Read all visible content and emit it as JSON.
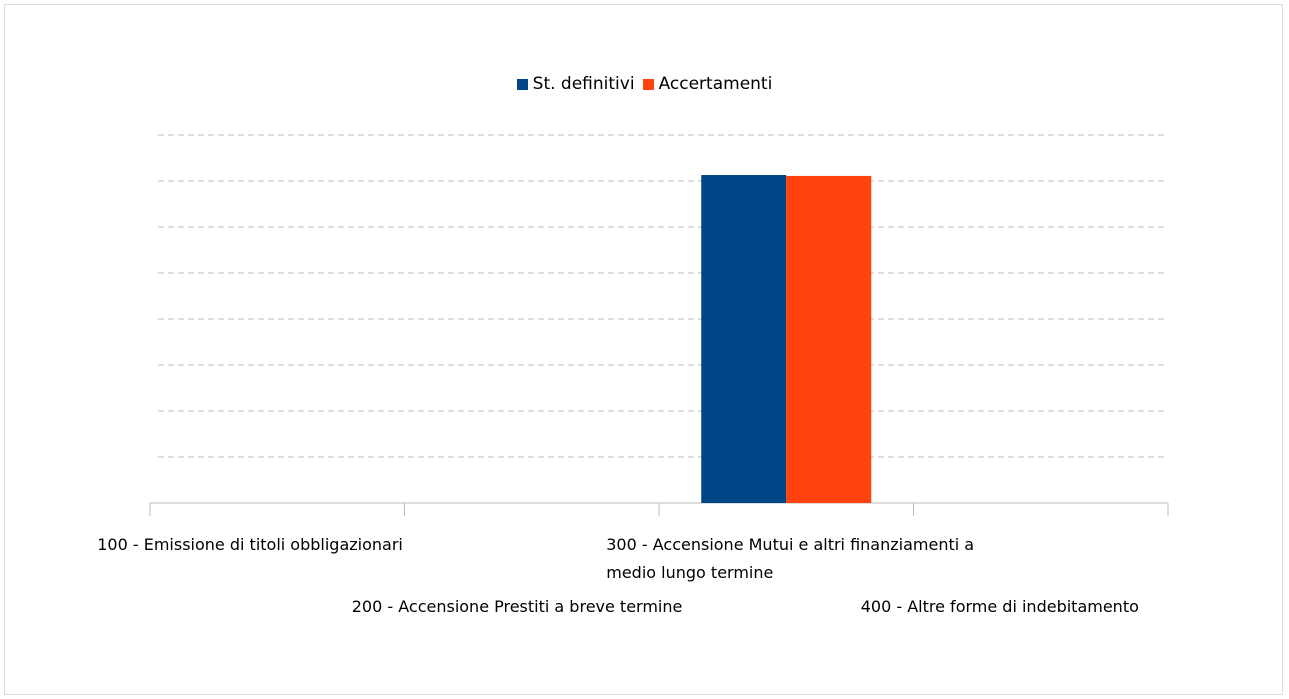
{
  "chart_data": {
    "type": "bar",
    "categories": [
      "100 - Emissione di titoli obbligazionari",
      "200 - Accensione Prestiti a breve termine",
      "300 - Accensione Mutui e altri finanziamenti a medio lungo termine",
      "400 - Altre forme di indebitamento"
    ],
    "series": [
      {
        "name": "St. definitivi",
        "color": "#004586",
        "values": [
          0,
          0,
          7.13,
          0
        ]
      },
      {
        "name": "Accertamenti",
        "color": "#ff420e",
        "values": [
          0,
          0,
          7.11,
          0
        ]
      }
    ],
    "ylim": [
      0,
      8
    ],
    "yticks": [
      0,
      1,
      2,
      3,
      4,
      5,
      6,
      7,
      8
    ],
    "grid": true,
    "legend": "top"
  }
}
